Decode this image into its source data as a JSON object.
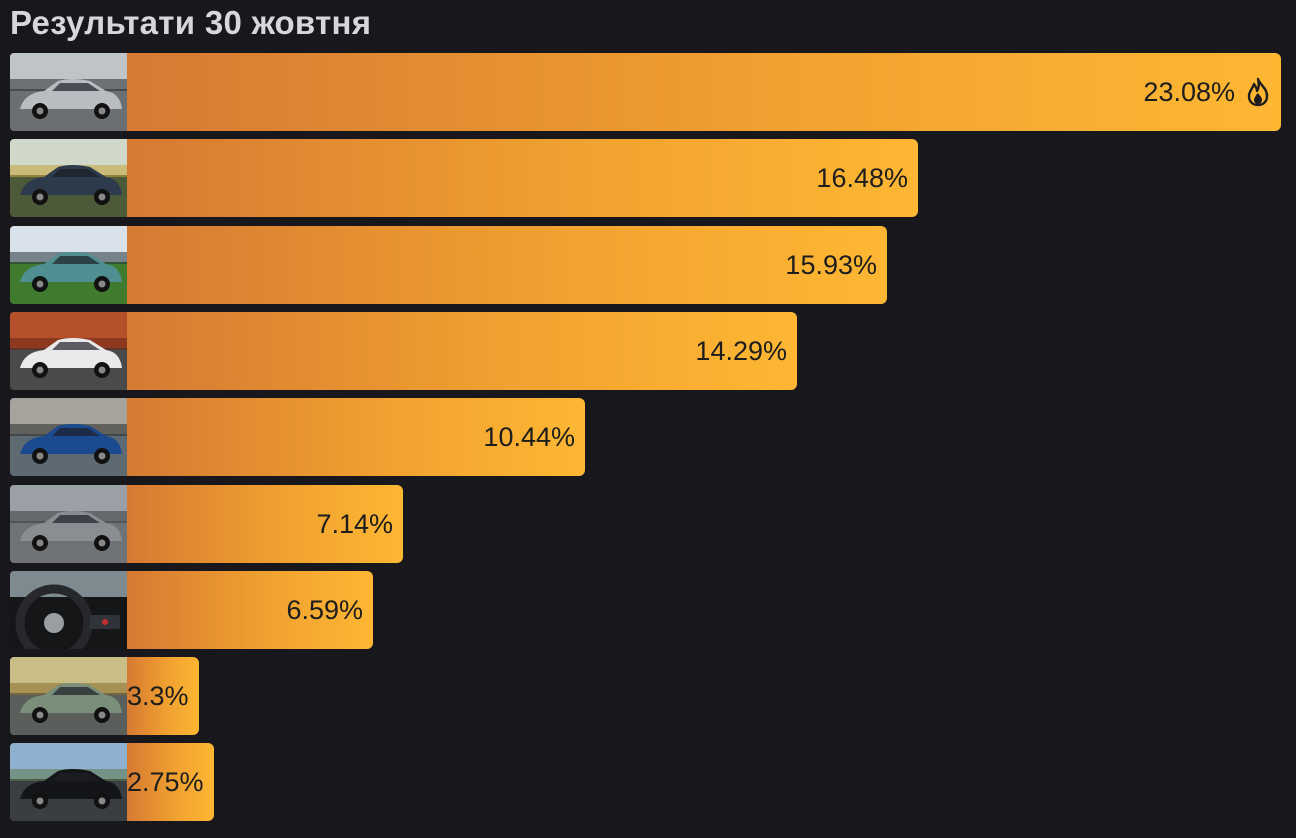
{
  "title": "Результати 30 жовтня",
  "chart_data": {
    "type": "bar",
    "orientation": "horizontal",
    "title": "Результати 30 жовтня",
    "value_unit": "%",
    "xlim": [
      0,
      23.08
    ],
    "categories": [
      "car-1",
      "car-2",
      "car-3",
      "car-4",
      "car-5",
      "car-6",
      "car-7",
      "car-8",
      "car-9"
    ],
    "values": [
      23.08,
      16.48,
      15.93,
      14.29,
      10.44,
      7.14,
      6.59,
      3.3,
      2.75
    ],
    "labels": [
      "23.08%",
      "16.48%",
      "15.93%",
      "14.29%",
      "10.44%",
      "7.14%",
      "6.59%",
      "3.3%",
      "2.75%"
    ],
    "leader_icon": "fire-icon",
    "thumbnail_icons": [
      "silver-coupe-photo",
      "dark-hatchback-photo",
      "teal-sedan-photo",
      "white-sedan-sunset-photo",
      "blue-hatchback-photo",
      "grey-crossover-photo",
      "car-interior-steering-wheel-photo",
      "green-minivan-photo",
      "black-sedan-road-photo"
    ],
    "colors": {
      "bar_start": "#d57a33",
      "bar_end": "#fdb733",
      "background": "#17171c",
      "label": "#1d1d1d"
    }
  }
}
